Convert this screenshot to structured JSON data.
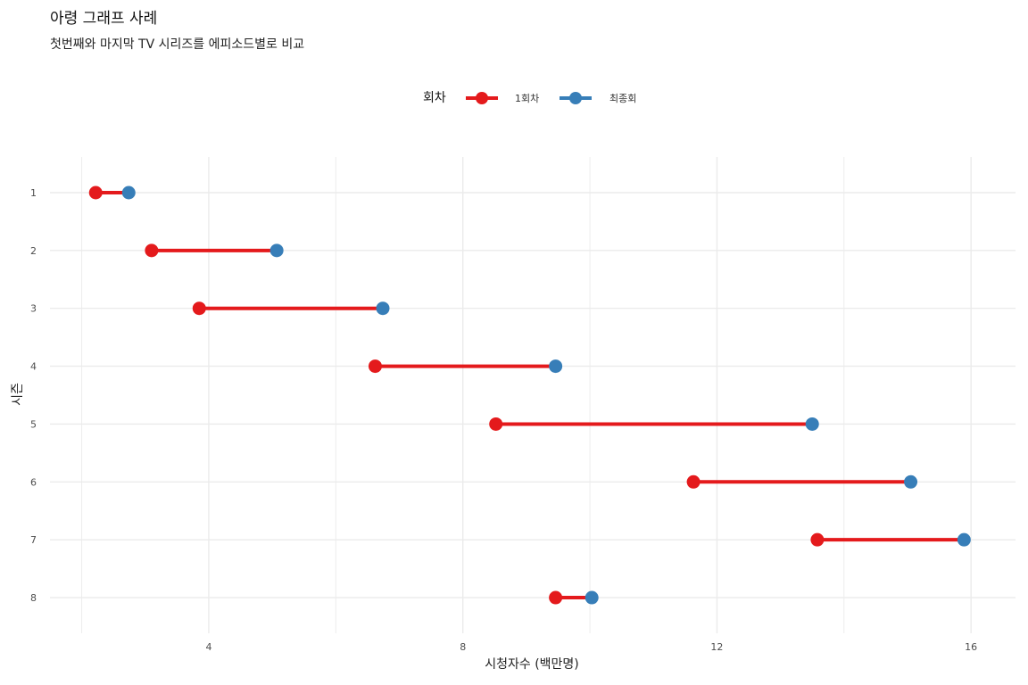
{
  "chart_data": {
    "type": "dumbbell",
    "title": "아령 그래프 사례",
    "subtitle": "첫번째와 마지막 TV 시리즈를 에피소드별로 비교",
    "xlabel": "시청자수 (백만명)",
    "ylabel": "시즌",
    "xlim": [
      1.5,
      16.7
    ],
    "x_ticks": [
      "4",
      "8",
      "12",
      "16"
    ],
    "categories": [
      "1",
      "2",
      "3",
      "4",
      "5",
      "6",
      "7",
      "8"
    ],
    "grid": true,
    "legend": {
      "title": "회차",
      "position": "top"
    },
    "series": [
      {
        "name": "1회차",
        "color": "#e41a1c",
        "values": [
          2.22,
          3.1,
          3.85,
          6.62,
          8.52,
          11.63,
          13.58,
          9.46
        ]
      },
      {
        "name": "최종회",
        "color": "#377eb8",
        "values": [
          2.74,
          5.07,
          6.74,
          9.46,
          13.5,
          15.05,
          15.89,
          10.03
        ]
      }
    ]
  }
}
